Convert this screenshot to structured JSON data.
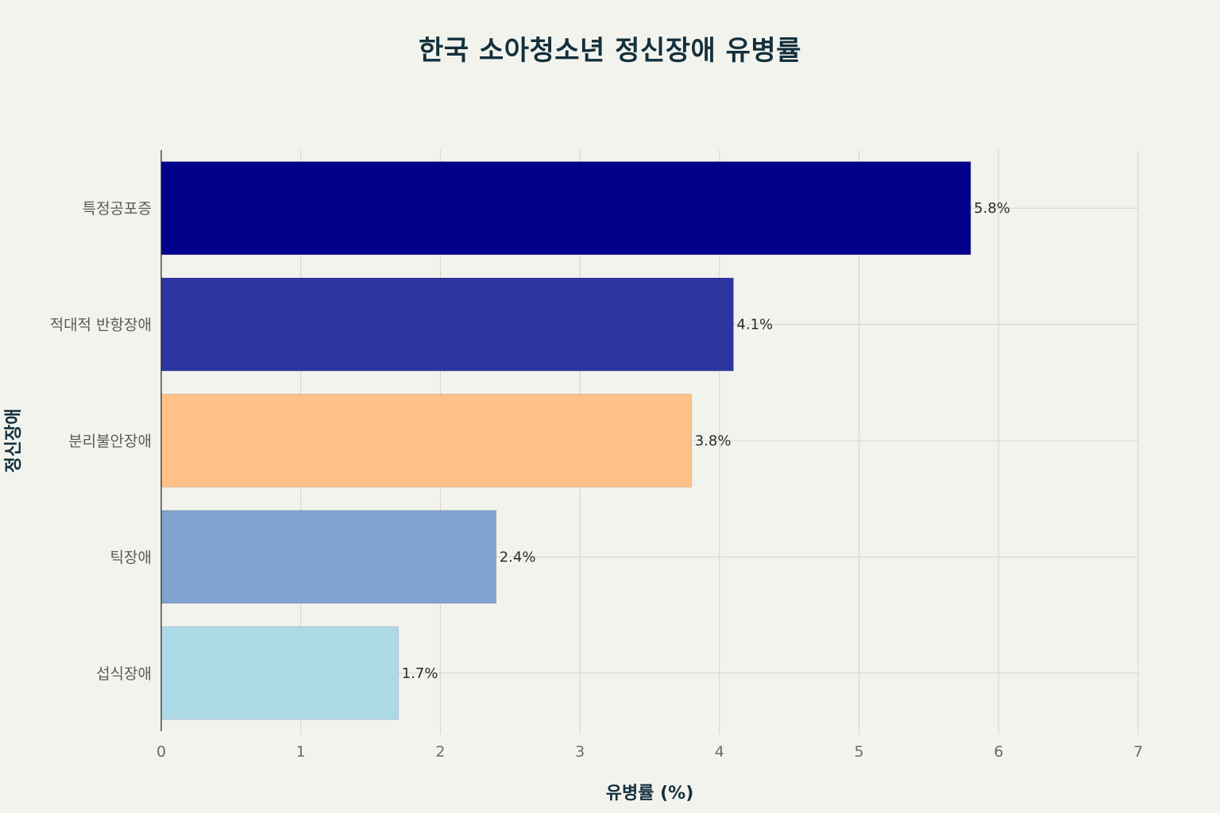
{
  "chart_data": {
    "type": "bar",
    "orientation": "horizontal",
    "title": "한국 소아청소년 정신장애 유병률",
    "xlabel": "유병률 (%)",
    "ylabel": "정신장애",
    "categories": [
      "특정공포증",
      "적대적 반항장애",
      "분리불안장애",
      "틱장애",
      "섭식장애"
    ],
    "values": [
      5.8,
      4.1,
      3.8,
      2.4,
      1.7
    ],
    "data_labels": [
      "5.8%",
      "4.1%",
      "3.8%",
      "2.4%",
      "1.7%"
    ],
    "colors": [
      "#00008b",
      "#2c35a0",
      "#ffc187",
      "#82a3d0",
      "#add8e6"
    ],
    "xlim": [
      0,
      7
    ],
    "xticks": [
      0,
      1,
      2,
      3,
      4,
      5,
      6,
      7
    ],
    "grid": true,
    "legend": "none"
  }
}
